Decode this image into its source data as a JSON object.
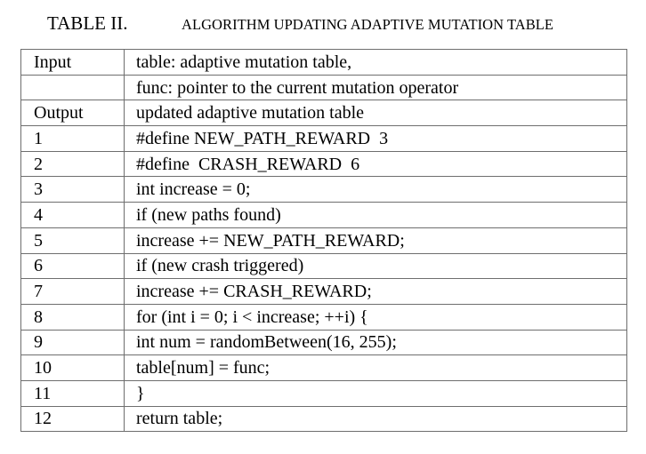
{
  "caption": {
    "label": "TABLE II.",
    "title": "ALGORITHM UPDATING ADAPTIVE MUTATION TABLE"
  },
  "rows": [
    {
      "c1": "Input",
      "c2": "table: adaptive mutation table,"
    },
    {
      "c1": "",
      "c2": "func: pointer to the current mutation operator"
    },
    {
      "c1": "Output",
      "c2": "updated adaptive mutation table"
    },
    {
      "c1": "1",
      "c2": "#define NEW_PATH_REWARD  3"
    },
    {
      "c1": "2",
      "c2": "#define  CRASH_REWARD  6"
    },
    {
      "c1": "3",
      "c2": "int increase = 0;"
    },
    {
      "c1": "4",
      "c2": "if (new paths found)"
    },
    {
      "c1": "5",
      "c2": "increase += NEW_PATH_REWARD;"
    },
    {
      "c1": "6",
      "c2": "if (new crash triggered)"
    },
    {
      "c1": "7",
      "c2": "increase += CRASH_REWARD;"
    },
    {
      "c1": "8",
      "c2": "for (int i = 0; i < increase; ++i) {"
    },
    {
      "c1": "9",
      "c2": "int num = randomBetween(16, 255);"
    },
    {
      "c1": "10",
      "c2": "table[num] = func;"
    },
    {
      "c1": "11",
      "c2": "}"
    },
    {
      "c1": "12",
      "c2": "return table;"
    }
  ]
}
